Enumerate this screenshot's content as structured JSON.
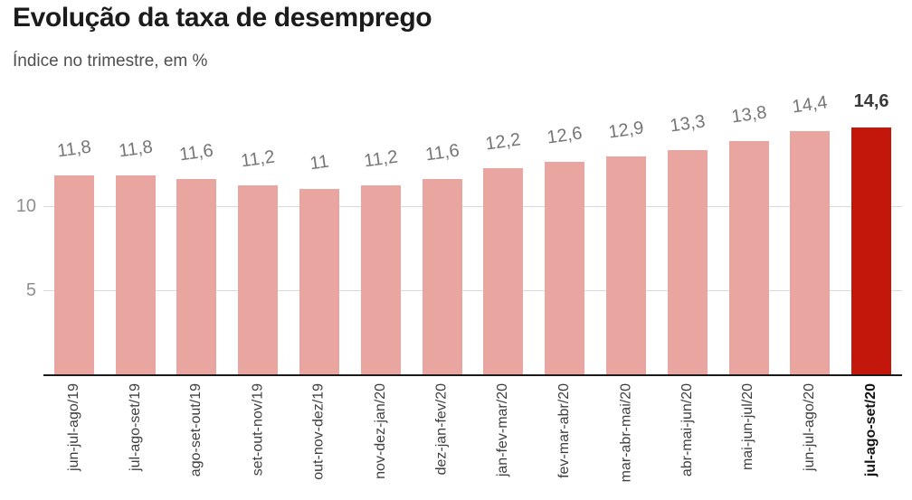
{
  "title": "Evolução da taxa de desemprego",
  "subtitle": "Índice no trimestre, em %",
  "chart_data": {
    "type": "bar",
    "title": "Evolução da taxa de desemprego",
    "subtitle": "Índice no trimestre, em %",
    "categories": [
      "jun-jul-ago/19",
      "jul-ago-set/19",
      "ago-set-out/19",
      "set-out-nov/19",
      "out-nov-dez/19",
      "nov-dez-jan/20",
      "dez-jan-fev/20",
      "jan-fev-mar/20",
      "fev-mar-abr/20",
      "mar-abr-mai/20",
      "abr-mai-jun/20",
      "mai-jun-jul/20",
      "jun-jul-ago/20",
      "jul-ago-set/20"
    ],
    "values": [
      11.8,
      11.8,
      11.6,
      11.2,
      11,
      11.2,
      11.6,
      12.2,
      12.6,
      12.9,
      13.3,
      13.8,
      14.4,
      14.6
    ],
    "value_labels": [
      "11,8",
      "11,8",
      "11,6",
      "11,2",
      "11",
      "11,2",
      "11,6",
      "12,2",
      "12,6",
      "12,9",
      "13,3",
      "13,8",
      "14,4",
      "14,6"
    ],
    "highlight_index": 13,
    "highlight_category": "jul-ago-set/20",
    "highlight_value_label": "14,6",
    "yticks": [
      {
        "value": 5,
        "label": "5"
      },
      {
        "value": 10,
        "label": "10"
      }
    ],
    "ylim": [
      0,
      15
    ],
    "grid": true,
    "legend": false,
    "xlabel": "",
    "ylabel": "",
    "bar_color": "#e9a6a0",
    "highlight_color": "#c4170c"
  }
}
